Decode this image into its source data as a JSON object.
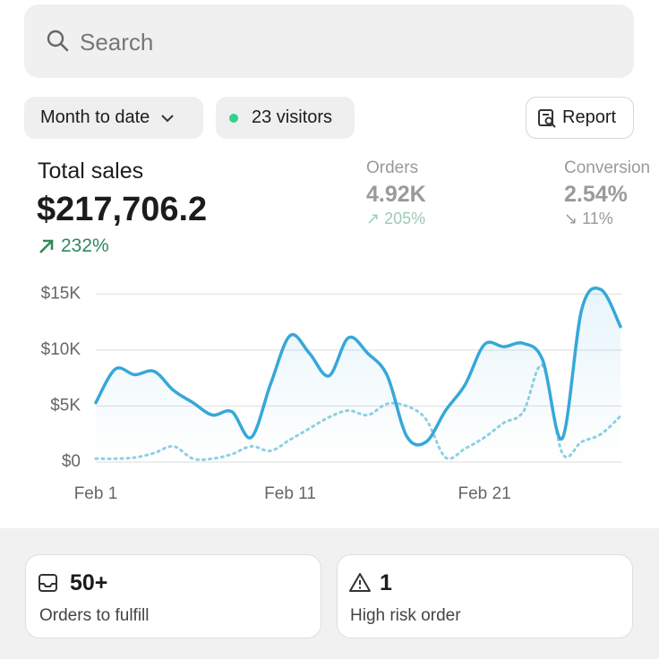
{
  "search": {
    "placeholder": "Search"
  },
  "filters": {
    "period": "Month to date",
    "visitors": "23 visitors",
    "report": "Report"
  },
  "summary": {
    "title": "Total sales",
    "value": "$217,706.2",
    "change": "232%"
  },
  "metrics": [
    {
      "label": "Orders",
      "value": "4.92K",
      "change": "205%"
    },
    {
      "label": "Conversion",
      "value": "2.54%",
      "change": "11%"
    }
  ],
  "chart_data": {
    "type": "line",
    "categories": [
      "Feb 1",
      null,
      null,
      null,
      null,
      null,
      null,
      null,
      null,
      null,
      "Feb 11",
      null,
      null,
      null,
      null,
      null,
      null,
      null,
      null,
      null,
      "Feb 21",
      null,
      null,
      null,
      null,
      null,
      null,
      null
    ],
    "series": [
      {
        "color": "#36a8d8",
        "values": [
          5300,
          8300,
          7800,
          8100,
          6400,
          5300,
          4200,
          4500,
          2200,
          7000,
          11300,
          9700,
          7700,
          11100,
          9700,
          7700,
          2300,
          1800,
          4600,
          6900,
          10500,
          10300,
          10600,
          9100,
          2100,
          13600,
          15400,
          12100
        ]
      },
      {
        "color": "#8fd0e2",
        "values": [
          300,
          300,
          400,
          800,
          1400,
          300,
          300,
          700,
          1400,
          1000,
          2000,
          3000,
          4000,
          4600,
          4200,
          5200,
          5000,
          3800,
          400,
          1200,
          2200,
          3500,
          4500,
          8600,
          800,
          1800,
          2500,
          4100
        ]
      }
    ],
    "ylim": [
      0,
      16000
    ],
    "yticks": [
      {
        "value": 0,
        "label": "$0"
      },
      {
        "value": 5000,
        "label": "$5K"
      },
      {
        "value": 10000,
        "label": "$10K"
      },
      {
        "value": 15000,
        "label": "$15K"
      }
    ],
    "grid": true
  },
  "cards": [
    {
      "value": "50+",
      "label": "Orders to fulfill"
    },
    {
      "value": "1",
      "label": "High risk order"
    }
  ]
}
